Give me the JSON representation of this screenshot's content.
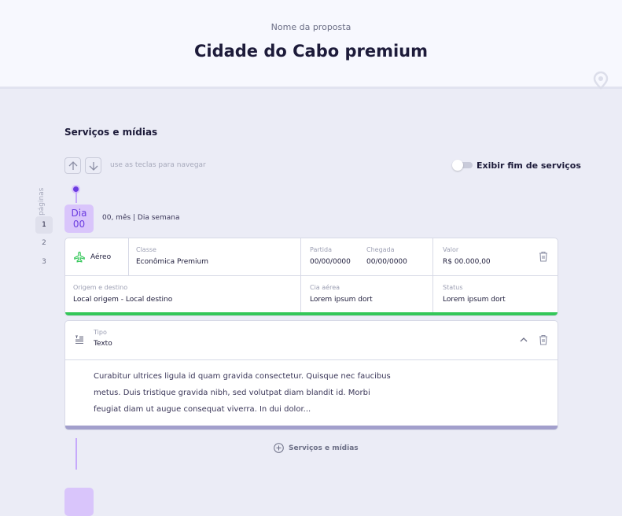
{
  "header": {
    "subtitle": "Nome da proposta",
    "title": "Cidade do Cabo premium"
  },
  "section_title": "Serviços e mídias",
  "nav": {
    "hint": "use as teclas para navegar",
    "toggle_label": "Exibir fim de serviços",
    "toggle_on": false
  },
  "pages": {
    "label": "páginas",
    "items": [
      "1",
      "2",
      "3"
    ],
    "active": "1"
  },
  "day": {
    "line1": "Dia",
    "line2": "00",
    "date": "00, mês | Dia semana"
  },
  "flight_card": {
    "type": "Aéreo",
    "classe_label": "Classe",
    "classe": "Econômica Premium",
    "partida_label": "Partida",
    "partida": "00/00/0000",
    "chegada_label": "Chegada",
    "chegada": "00/00/0000",
    "valor_label": "Valor",
    "valor": "R$ 00.000,00",
    "origem_label": "Origem e destino",
    "origem": "Local origem - Local destino",
    "cia_label": "Cia aérea",
    "cia": "Lorem ipsum dort",
    "status_label": "Status",
    "status": "Lorem ipsum dort",
    "status_color": "#34c759"
  },
  "text_card": {
    "tipo_label": "Tipo",
    "tipo": "Texto",
    "body": "Curabitur ultrices ligula id quam gravida consectetur. Quisque nec faucibus metus. Duis tristique gravida nibh, sed volutpat diam blandit id. Morbi feugiat diam ut augue consequat viverra. In dui dolor...",
    "bar_color": "#a29fcc"
  },
  "add_label": "Serviços e mídias",
  "colors": {
    "accent": "#6b3ce0",
    "day_bg": "#d9c5fb",
    "text": "#1d1b3a"
  }
}
